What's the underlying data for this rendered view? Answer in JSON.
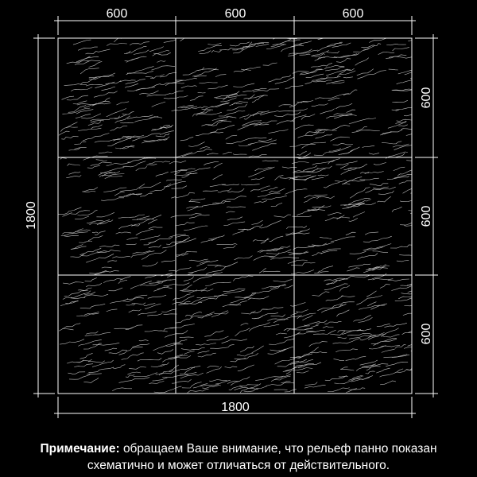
{
  "dimensions": {
    "top": [
      "600",
      "600",
      "600"
    ],
    "right": [
      "600",
      "600",
      "600"
    ],
    "left": "1800",
    "bottom": "1800"
  },
  "note": {
    "label": "Примечание:",
    "text": "обращаем Ваше внимание, что рельеф панно показан схематично и может отличаться от действительного."
  }
}
